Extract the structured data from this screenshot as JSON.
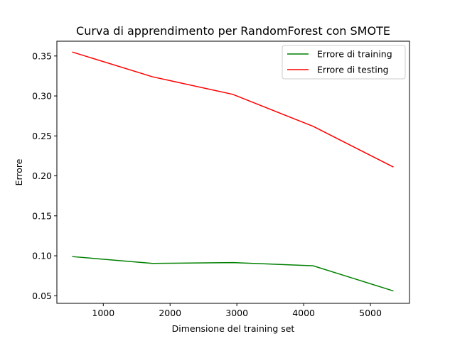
{
  "chart_data": {
    "type": "line",
    "title": "Curva di apprendimento per RandomForest con SMOTE",
    "xlabel": "Dimensione del training set",
    "ylabel": "Errore",
    "xlim": [
      305,
      5585
    ],
    "ylim": [
      0.0405,
      0.3685
    ],
    "xticks": [
      1000,
      2000,
      3000,
      4000,
      5000
    ],
    "xtick_labels": [
      "1000",
      "2000",
      "3000",
      "4000",
      "5000"
    ],
    "yticks": [
      0.05,
      0.1,
      0.15,
      0.2,
      0.25,
      0.3,
      0.35
    ],
    "ytick_labels": [
      "0.05",
      "0.10",
      "0.15",
      "0.20",
      "0.25",
      "0.30",
      "0.35"
    ],
    "grid": false,
    "legend_position": "top-right",
    "x": [
      534,
      1736,
      2939,
      4142,
      5345
    ],
    "series": [
      {
        "name": "Errore di training",
        "color": "#008000",
        "values": [
          0.099,
          0.0905,
          0.0915,
          0.0875,
          0.056
        ]
      },
      {
        "name": "Errore di testing",
        "color": "#ff0000",
        "values": [
          0.355,
          0.324,
          0.302,
          0.262,
          0.211
        ]
      }
    ]
  }
}
